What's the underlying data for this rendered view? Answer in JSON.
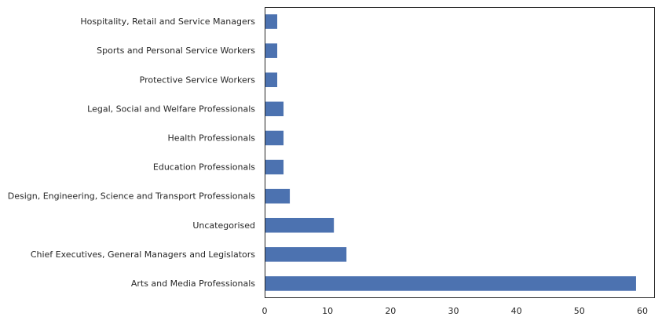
{
  "chart_data": {
    "type": "bar",
    "orientation": "horizontal",
    "title": "",
    "xlabel": "",
    "ylabel": "",
    "categories": [
      "Hospitality, Retail and Service Managers",
      "Sports and Personal Service Workers",
      "Protective Service Workers",
      "Legal, Social and Welfare Professionals",
      "Health Professionals",
      "Education Professionals",
      "Design, Engineering, Science and Transport Professionals",
      "Uncategorised",
      "Chief Executives, General Managers and Legislators",
      "Arts and Media Professionals"
    ],
    "values": [
      2,
      2,
      2,
      3,
      3,
      3,
      4,
      11,
      13,
      59
    ],
    "xlim": [
      0,
      62
    ],
    "xticks": [
      0,
      10,
      20,
      30,
      40,
      50,
      60
    ],
    "grid": false,
    "legend": "none",
    "bar_color": "#4c72b0",
    "frame_color": "#262626"
  }
}
